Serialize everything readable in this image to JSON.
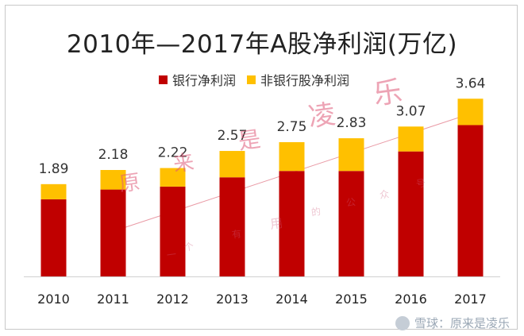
{
  "chart_data": {
    "type": "bar",
    "title": "2010年—2017年A股净利润(万亿)",
    "categories": [
      "2010",
      "2011",
      "2012",
      "2013",
      "2014",
      "2015",
      "2016",
      "2017"
    ],
    "totals": [
      "1.89",
      "2.18",
      "2.22",
      "2.57",
      "2.75",
      "2.83",
      "3.07",
      "3.64"
    ],
    "series": [
      {
        "name": "银行净利润",
        "color": "#c00000",
        "values": [
          1.58,
          1.78,
          1.84,
          2.03,
          2.16,
          2.16,
          2.56,
          3.1
        ]
      },
      {
        "name": "非银行股净利润",
        "color": "#ffc000",
        "values": [
          0.31,
          0.4,
          0.38,
          0.54,
          0.59,
          0.67,
          0.51,
          0.54
        ]
      }
    ],
    "ylim": [
      0,
      4.1
    ],
    "stacked": true,
    "grid": false,
    "legend": "top-center"
  },
  "watermark": {
    "big": [
      "原",
      "来",
      "是",
      "凌",
      "乐"
    ],
    "small": [
      "一",
      "个",
      "有",
      "用",
      "的",
      "公",
      "众",
      "号"
    ]
  },
  "footer": {
    "text": "雪球：原来是凌乐"
  }
}
